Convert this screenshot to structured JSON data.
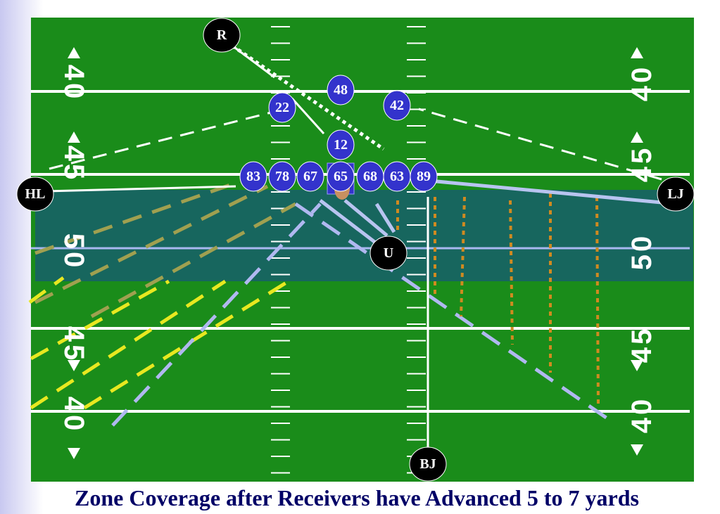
{
  "caption": "Zone Coverage after Receivers have Advanced 5 to 7 yards",
  "officials": [
    "R",
    "HL",
    "LJ",
    "U",
    "BJ"
  ],
  "defense": [
    "48",
    "22",
    "42",
    "12"
  ],
  "offense": [
    "83",
    "78",
    "67",
    "65",
    "68",
    "63",
    "89"
  ],
  "yard_numbers_left": [
    "40",
    "45",
    "50",
    "45",
    "40"
  ],
  "yard_numbers_right": [
    "40",
    "45",
    "50",
    "45",
    "40"
  ]
}
